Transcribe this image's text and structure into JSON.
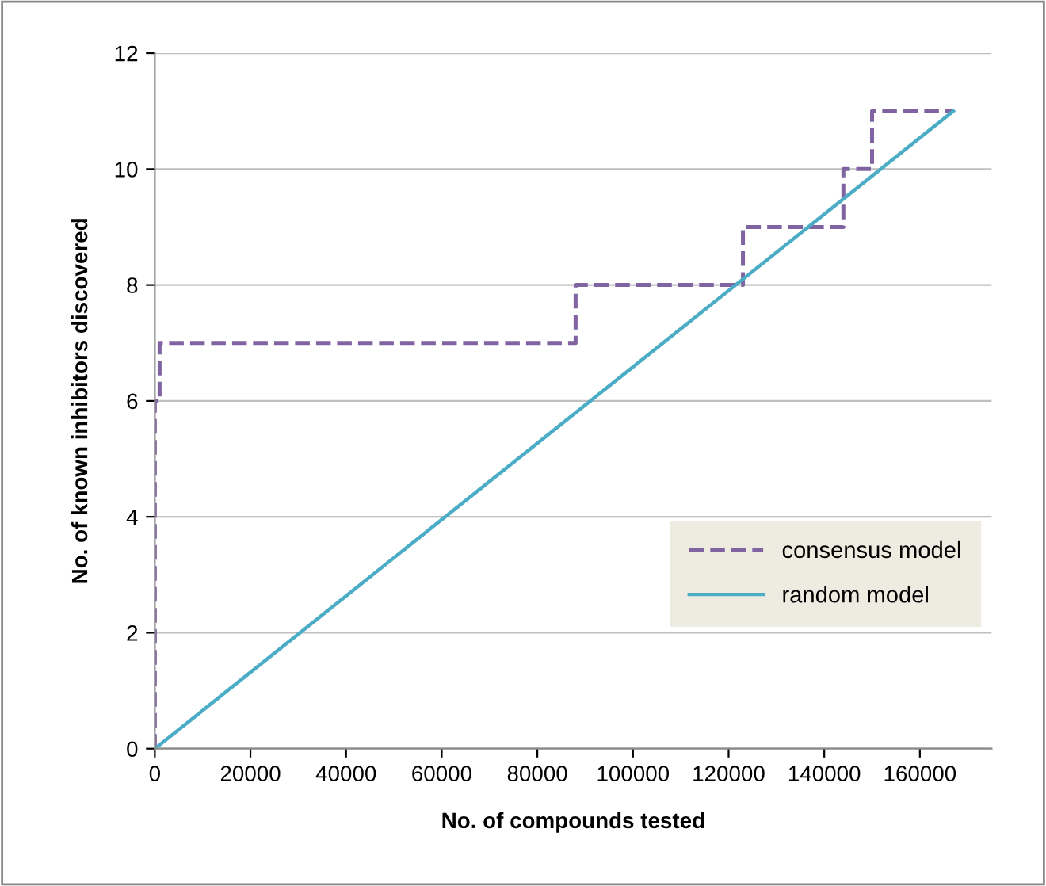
{
  "chart_data": {
    "type": "line",
    "xlabel": "No. of compounds tested",
    "ylabel": "No. of known inhibitors discovered",
    "xlim": [
      0,
      175000
    ],
    "ylim": [
      0,
      12
    ],
    "xticks": [
      0,
      20000,
      40000,
      60000,
      80000,
      100000,
      120000,
      140000,
      160000
    ],
    "yticks": [
      0,
      2,
      4,
      6,
      8,
      10,
      12
    ],
    "grid": "y",
    "legend": "lower right",
    "series": [
      {
        "name": "consensus model",
        "type": "step",
        "color": "#8064a2",
        "line_style": "dashed",
        "x": [
          0,
          0,
          1000,
          88000,
          123000,
          144000,
          150000,
          167000
        ],
        "values": [
          0,
          6,
          7,
          8,
          9,
          10,
          11,
          11
        ]
      },
      {
        "name": "random model",
        "color": "#4bacc6",
        "line_style": "solid",
        "x": [
          0,
          167000
        ],
        "values": [
          0,
          11
        ]
      }
    ]
  }
}
